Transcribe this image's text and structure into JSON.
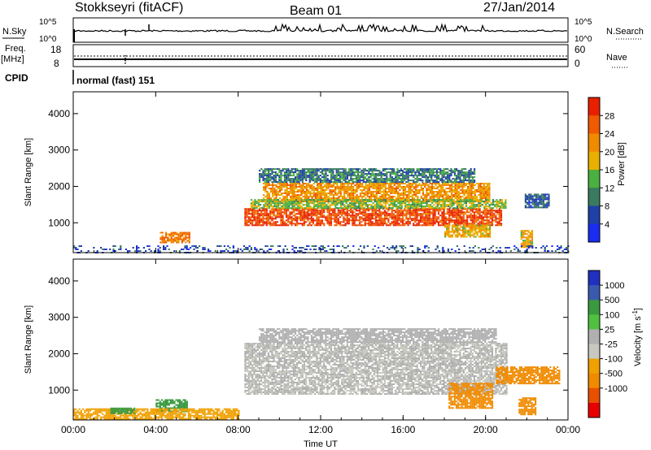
{
  "header": {
    "station": "Stokkseyri (fitACF)",
    "beam": "Beam 01",
    "date": "27/Jan/2014"
  },
  "top_panels": {
    "nsky_label": "N.Sky",
    "nsky_ticks": [
      "10^5",
      "10^0"
    ],
    "nsearch_label": "N.Search",
    "nsearch_ticks": [
      "10^5",
      "10^0"
    ],
    "freq_label": "Freq.",
    "freq_unit": "[MHz]",
    "freq_ticks": [
      "18",
      "8"
    ],
    "nave_label": "Nave",
    "nave_ticks": [
      "60",
      "0"
    ],
    "cpid_label": "CPID",
    "cpid_text": "normal (fast) 151"
  },
  "colors": {
    "power_scale": [
      "#1a2cf0",
      "#2040a8",
      "#3a7a60",
      "#4ab040",
      "#e8b000",
      "#f08a00",
      "#f05a00",
      "#e82000"
    ],
    "velocity_scale": [
      "#e80000",
      "#e85000",
      "#f08a00",
      "#f0a000",
      "#c8c8c0",
      "#b0b0b0",
      "#50c040",
      "#3a9a40",
      "#3a5ab0",
      "#2030c0"
    ],
    "frame": "#000000"
  },
  "chart_data": [
    {
      "type": "heatmap",
      "panel": "power",
      "ylabel": "Slant Range [km]",
      "xlabel": "Time UT",
      "x_ticks": [
        "00:00",
        "04:00",
        "08:00",
        "12:00",
        "16:00",
        "20:00",
        "00:00"
      ],
      "xlim_hours": [
        0,
        24
      ],
      "y_ticks": [
        "1000",
        "2000",
        "3000",
        "4000"
      ],
      "ylim": [
        180,
        4600
      ],
      "colorbar_label": "Power [dB]",
      "colorbar_ticks": [
        "4",
        "8",
        "12",
        "16",
        "20",
        "24",
        "28"
      ],
      "clim": [
        0,
        30
      ],
      "echo_regions": [
        {
          "t0": 8.3,
          "t1": 20.8,
          "r0": 950,
          "r1": 1400,
          "value": 26
        },
        {
          "t0": 9.2,
          "t1": 20.2,
          "r0": 1600,
          "r1": 2100,
          "value": 20
        },
        {
          "t0": 8.6,
          "t1": 21.0,
          "r0": 1400,
          "r1": 1650,
          "value": 14
        },
        {
          "t0": 9.0,
          "t1": 19.5,
          "r0": 2100,
          "r1": 2500,
          "value": 9
        },
        {
          "t0": 4.2,
          "t1": 5.6,
          "r0": 450,
          "r1": 750,
          "value": 22
        },
        {
          "t0": 18.0,
          "t1": 20.2,
          "r0": 600,
          "r1": 950,
          "value": 18
        },
        {
          "t0": 21.7,
          "t1": 22.3,
          "r0": 350,
          "r1": 800,
          "value": 18
        },
        {
          "t0": 21.9,
          "t1": 23.1,
          "r0": 1400,
          "r1": 1800,
          "value": 7
        },
        {
          "t0": 0.0,
          "t1": 24.0,
          "r0": 200,
          "r1": 380,
          "value": 6
        }
      ]
    },
    {
      "type": "heatmap",
      "panel": "velocity",
      "ylabel": "Slant Range [km]",
      "xlabel": "Time UT",
      "x_ticks": [
        "00:00",
        "04:00",
        "08:00",
        "12:00",
        "16:00",
        "20:00",
        "00:00"
      ],
      "xlim_hours": [
        0,
        24
      ],
      "y_ticks": [
        "1000",
        "2000",
        "3000",
        "4000"
      ],
      "ylim": [
        180,
        4600
      ],
      "colorbar_label": "Velocity [m s",
      "colorbar_label_exp": "-1",
      "colorbar_ticks": [
        "1000",
        "500",
        "100",
        "25",
        "-25",
        "-100",
        "-500",
        "-1000"
      ],
      "echo_regions": [
        {
          "t0": 8.3,
          "t1": 21.0,
          "r0": 900,
          "r1": 2300,
          "value": 0
        },
        {
          "t0": 9.0,
          "t1": 20.5,
          "r0": 2300,
          "r1": 2700,
          "value": 10
        },
        {
          "t0": 4.0,
          "t1": 5.5,
          "r0": 400,
          "r1": 750,
          "value": 120
        },
        {
          "t0": 18.2,
          "t1": 20.3,
          "r0": 500,
          "r1": 1200,
          "value": -300
        },
        {
          "t0": 20.5,
          "t1": 23.6,
          "r0": 1200,
          "r1": 1650,
          "value": -200
        },
        {
          "t0": 21.6,
          "t1": 22.4,
          "r0": 350,
          "r1": 800,
          "value": -200
        },
        {
          "t0": 0.0,
          "t1": 8.0,
          "r0": 200,
          "r1": 500,
          "value": -60
        },
        {
          "t0": 1.8,
          "t1": 3.0,
          "r0": 380,
          "r1": 520,
          "value": 150
        }
      ]
    }
  ]
}
